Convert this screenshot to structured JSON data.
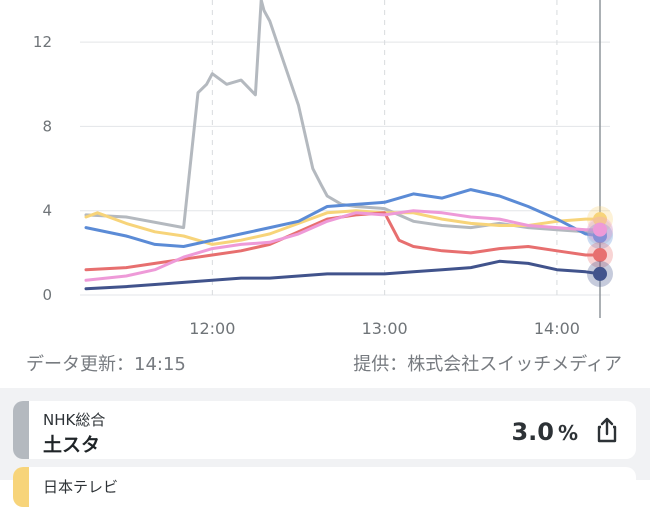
{
  "chart_data": {
    "type": "line",
    "ylim": [
      0,
      14
    ],
    "xlim": [
      "11:16",
      "14:15"
    ],
    "y_ticks": [
      "0",
      "4",
      "8",
      "12"
    ],
    "x_ticks": [
      "12:00",
      "13:00",
      "14:00"
    ],
    "grid": true,
    "series": [
      {
        "color": "#b4b9bf",
        "x": [
          "11:16",
          "11:30",
          "11:50",
          "11:55",
          "11:58",
          "12:00",
          "12:05",
          "12:10",
          "12:15",
          "12:17",
          "12:18",
          "12:20",
          "12:25",
          "12:30",
          "12:35",
          "12:38",
          "12:40",
          "12:45",
          "12:50",
          "13:00",
          "13:10",
          "13:20",
          "13:30",
          "13:40",
          "13:50",
          "14:00",
          "14:10",
          "14:15"
        ],
        "values": [
          3.8,
          3.7,
          3.2,
          9.6,
          10.0,
          10.5,
          10.0,
          10.2,
          9.5,
          14.0,
          13.5,
          13.0,
          11.0,
          9.0,
          6.0,
          5.2,
          4.7,
          4.3,
          4.2,
          4.1,
          3.5,
          3.3,
          3.2,
          3.4,
          3.2,
          3.1,
          3.0,
          3.0
        ]
      },
      {
        "color": "#f7d47a",
        "x": [
          "11:16",
          "11:20",
          "11:30",
          "11:40",
          "11:50",
          "12:00",
          "12:10",
          "12:20",
          "12:30",
          "12:40",
          "12:50",
          "13:00",
          "13:10",
          "13:20",
          "13:30",
          "13:40",
          "13:50",
          "14:00",
          "14:10",
          "14:15"
        ],
        "values": [
          3.7,
          3.9,
          3.4,
          3.0,
          2.8,
          2.4,
          2.6,
          2.9,
          3.4,
          3.9,
          4.0,
          3.9,
          3.9,
          3.6,
          3.4,
          3.3,
          3.3,
          3.5,
          3.6,
          3.6
        ]
      },
      {
        "color": "#5b8bd6",
        "x": [
          "11:16",
          "11:30",
          "11:40",
          "11:50",
          "12:00",
          "12:10",
          "12:20",
          "12:30",
          "12:40",
          "12:50",
          "13:00",
          "13:10",
          "13:20",
          "13:30",
          "13:40",
          "13:50",
          "14:00",
          "14:10",
          "14:15"
        ],
        "values": [
          3.2,
          2.8,
          2.4,
          2.3,
          2.6,
          2.9,
          3.2,
          3.5,
          4.2,
          4.3,
          4.4,
          4.8,
          4.6,
          5.0,
          4.7,
          4.2,
          3.6,
          2.9,
          2.8
        ]
      },
      {
        "color": "#e76f6f",
        "x": [
          "11:16",
          "11:30",
          "11:40",
          "11:50",
          "12:00",
          "12:10",
          "12:20",
          "12:30",
          "12:40",
          "12:50",
          "13:00",
          "13:05",
          "13:10",
          "13:20",
          "13:30",
          "13:40",
          "13:50",
          "14:00",
          "14:10",
          "14:15"
        ],
        "values": [
          1.2,
          1.3,
          1.5,
          1.7,
          1.9,
          2.1,
          2.4,
          3.0,
          3.6,
          3.8,
          3.9,
          2.6,
          2.3,
          2.1,
          2.0,
          2.2,
          2.3,
          2.1,
          1.9,
          1.9
        ]
      },
      {
        "color": "#ee9ad8",
        "x": [
          "11:16",
          "11:30",
          "11:40",
          "11:50",
          "12:00",
          "12:10",
          "12:20",
          "12:30",
          "12:40",
          "12:50",
          "13:00",
          "13:10",
          "13:20",
          "13:30",
          "13:40",
          "13:50",
          "14:00",
          "14:10",
          "14:15"
        ],
        "values": [
          0.7,
          0.9,
          1.2,
          1.8,
          2.2,
          2.4,
          2.5,
          2.9,
          3.5,
          3.9,
          3.8,
          4.0,
          3.9,
          3.7,
          3.6,
          3.3,
          3.2,
          3.1,
          3.1
        ]
      },
      {
        "color": "#41538c",
        "x": [
          "11:16",
          "11:30",
          "11:40",
          "11:50",
          "12:00",
          "12:10",
          "12:20",
          "12:30",
          "12:40",
          "12:50",
          "13:00",
          "13:10",
          "13:20",
          "13:30",
          "13:40",
          "13:50",
          "14:00",
          "14:10",
          "14:15"
        ],
        "values": [
          0.3,
          0.4,
          0.5,
          0.6,
          0.7,
          0.8,
          0.8,
          0.9,
          1.0,
          1.0,
          1.0,
          1.1,
          1.2,
          1.3,
          1.6,
          1.5,
          1.2,
          1.1,
          1.0
        ]
      }
    ]
  },
  "footer": {
    "updated_label": "データ更新：14:15",
    "provider_label": "提供：株式会社スイッチメディア"
  },
  "list": {
    "items": [
      {
        "channel": "NHK総合",
        "program": "土スタ",
        "rating": "3.0",
        "unit": "%",
        "color": "#b4b9bf",
        "share_icon": "share-icon"
      },
      {
        "channel": "日本テレビ",
        "color": "#f7d47a"
      }
    ]
  }
}
